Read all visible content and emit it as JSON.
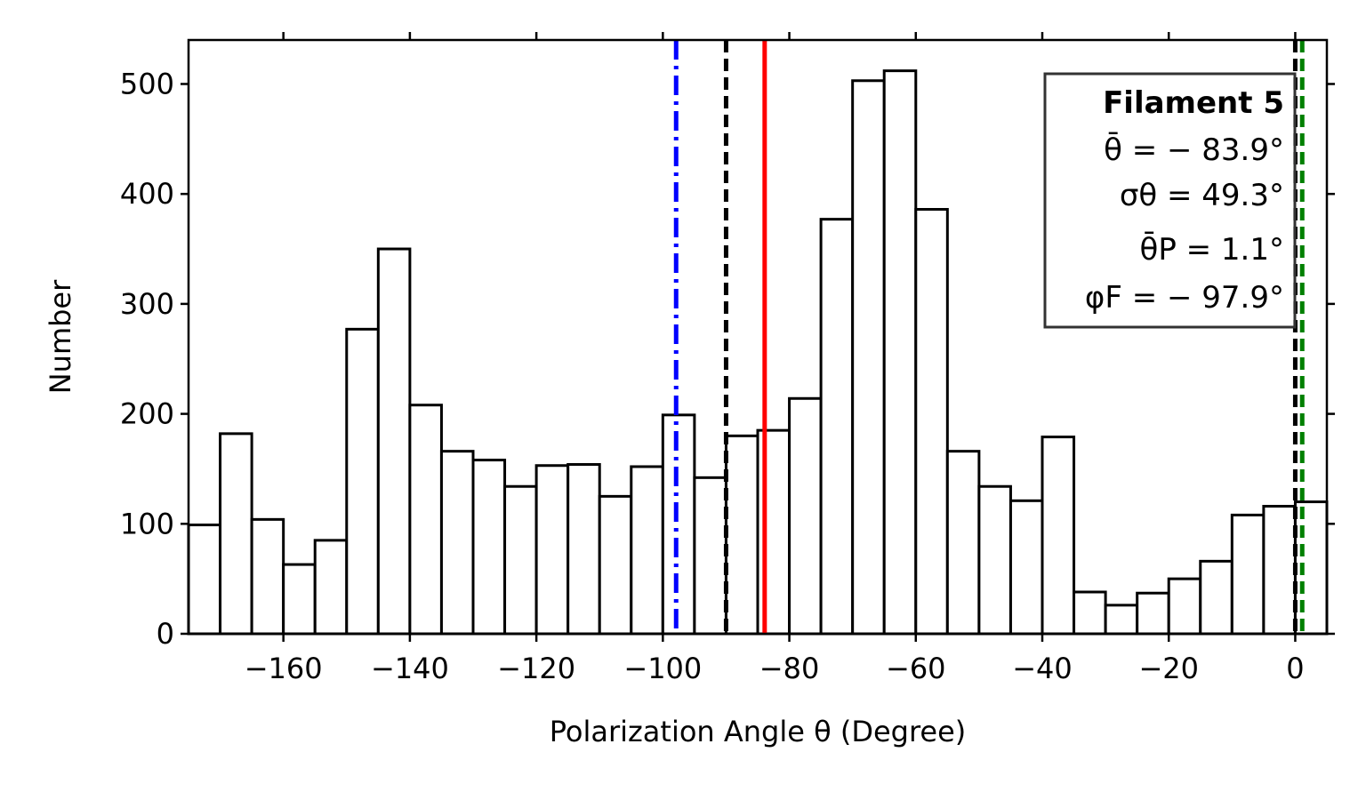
{
  "chart_data": {
    "type": "bar",
    "title": "",
    "xlabel": "Polarization Angle θ (Degree)",
    "ylabel": "Number",
    "xlim": [
      -175,
      5
    ],
    "ylim": [
      0,
      540
    ],
    "xticks": [
      -160,
      -140,
      -120,
      -100,
      -80,
      -60,
      -40,
      -20,
      0
    ],
    "xtick_labels": [
      "−160",
      "−140",
      "−120",
      "−100",
      "−80",
      "−60",
      "−40",
      "−20",
      "0"
    ],
    "yticks": [
      0,
      100,
      200,
      300,
      400,
      500
    ],
    "ytick_labels": [
      "0",
      "100",
      "200",
      "300",
      "400",
      "500"
    ],
    "bin_width": 5,
    "bin_starts": [
      -175,
      -170,
      -165,
      -160,
      -155,
      -150,
      -145,
      -140,
      -135,
      -130,
      -125,
      -120,
      -115,
      -110,
      -105,
      -100,
      -95,
      -90,
      -85,
      -80,
      -75,
      -70,
      -65,
      -60,
      -55,
      -50,
      -45,
      -40,
      -35,
      -30,
      -25,
      -20,
      -15,
      -10,
      -5,
      0
    ],
    "values": [
      99,
      182,
      104,
      63,
      85,
      277,
      350,
      208,
      166,
      158,
      134,
      153,
      154,
      125,
      152,
      199,
      142,
      180,
      185,
      214,
      377,
      503,
      512,
      386,
      166,
      134,
      121,
      179,
      38,
      26,
      37,
      50,
      66,
      108,
      116,
      120
    ],
    "vertical_lines": [
      {
        "name": "mean-theta-line",
        "x": -83.9,
        "color": "#ff0000",
        "style": "solid"
      },
      {
        "name": "phi-f-line",
        "x": -97.9,
        "color": "#0000ff",
        "style": "dashdot"
      },
      {
        "name": "reference-line-minus90",
        "x": -90,
        "color": "#000000",
        "style": "dashed"
      },
      {
        "name": "reference-line-zero",
        "x": 0,
        "color": "#000000",
        "style": "dashed"
      },
      {
        "name": "theta-p-line",
        "x": 1.1,
        "color": "#008000",
        "style": "dashed"
      }
    ],
    "legend": {
      "position": "top-right",
      "title": "Filament 5",
      "lines": [
        "θ̄ = − 83.9°",
        "σθ = 49.3°",
        "θ̄P = 1.1°",
        "φF = − 97.9°"
      ]
    }
  }
}
